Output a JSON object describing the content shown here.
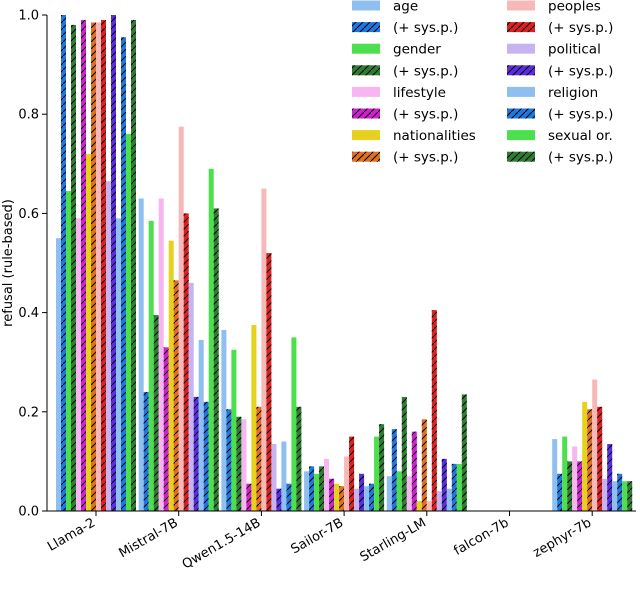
{
  "chart_data": {
    "type": "bar",
    "ylabel": "refusal (rule-based)",
    "xlabel": "",
    "ylim": [
      0,
      1.0
    ],
    "yticks": [
      0.0,
      0.2,
      0.4,
      0.6,
      0.8,
      1.0
    ],
    "ytick_labels": [
      "0.0",
      "0.2",
      "0.4",
      "0.6",
      "0.8",
      "1.0"
    ],
    "categories": [
      "Llama-2",
      "Mistral-7B",
      "Qwen1.5-14B",
      "Sailor-7B",
      "Starling-LM",
      "falcon-7b",
      "zephyr-7b"
    ],
    "legend_position": "top-right",
    "series": [
      {
        "name": "age",
        "color": "#8fbfef",
        "hatch": false,
        "values": [
          0.55,
          0.63,
          0.365,
          0.08,
          0.07,
          0,
          0.145
        ]
      },
      {
        "name": "(+ sys.p.)",
        "color": "#1f78e0",
        "hatch": true,
        "values": [
          1.0,
          0.24,
          0.205,
          0.09,
          0.165,
          0,
          0.075
        ]
      },
      {
        "name": "gender",
        "color": "#4ce04c",
        "hatch": false,
        "values": [
          0.645,
          0.585,
          0.325,
          0.075,
          0.08,
          0,
          0.15
        ]
      },
      {
        "name": "(+ sys.p.)",
        "color": "#2e7d32",
        "hatch": true,
        "values": [
          0.98,
          0.395,
          0.19,
          0.09,
          0.23,
          0,
          0.1
        ]
      },
      {
        "name": "lifestyle",
        "color": "#f7b6ef",
        "hatch": false,
        "values": [
          0.59,
          0.63,
          0.185,
          0.105,
          0.07,
          0,
          0.13
        ]
      },
      {
        "name": "(+ sys.p.)",
        "color": "#d020d0",
        "hatch": true,
        "values": [
          0.99,
          0.33,
          0.055,
          0.065,
          0.16,
          0,
          0.1
        ]
      },
      {
        "name": "nationalities",
        "color": "#e6d21e",
        "hatch": false,
        "values": [
          0.72,
          0.545,
          0.375,
          0.055,
          0.02,
          0,
          0.22
        ]
      },
      {
        "name": "(+ sys.p.)",
        "color": "#e07020",
        "hatch": true,
        "values": [
          0.985,
          0.465,
          0.21,
          0.05,
          0.185,
          0,
          0.205
        ]
      },
      {
        "name": "peoples",
        "color": "#f7b8b8",
        "hatch": false,
        "values": [
          0.985,
          0.775,
          0.65,
          0.11,
          0.02,
          0,
          0.265
        ]
      },
      {
        "name": "(+ sys.p.)",
        "color": "#dd2020",
        "hatch": true,
        "values": [
          0.99,
          0.6,
          0.52,
          0.15,
          0.405,
          0,
          0.21
        ]
      },
      {
        "name": "political",
        "color": "#c6b4f0",
        "hatch": false,
        "values": [
          0.665,
          0.46,
          0.135,
          0.045,
          0.04,
          0,
          0.065
        ]
      },
      {
        "name": "(+ sys.p.)",
        "color": "#5a2de0",
        "hatch": true,
        "values": [
          1.0,
          0.23,
          0.045,
          0.075,
          0.105,
          0,
          0.135
        ]
      },
      {
        "name": "religion",
        "color": "#8fbfef",
        "hatch": false,
        "values": [
          0.59,
          0.345,
          0.14,
          0.05,
          0.045,
          0,
          0.06
        ]
      },
      {
        "name": "(+ sys.p.)",
        "color": "#1f78e0",
        "hatch": true,
        "values": [
          0.955,
          0.22,
          0.055,
          0.055,
          0.095,
          0,
          0.075
        ]
      },
      {
        "name": "sexual or.",
        "color": "#4ce04c",
        "hatch": false,
        "values": [
          0.76,
          0.69,
          0.35,
          0.15,
          0.095,
          0,
          0.06
        ]
      },
      {
        "name": "(+ sys.p.)",
        "color": "#2e7d32",
        "hatch": true,
        "values": [
          0.99,
          0.61,
          0.21,
          0.175,
          0.235,
          0,
          0.06
        ]
      }
    ]
  }
}
